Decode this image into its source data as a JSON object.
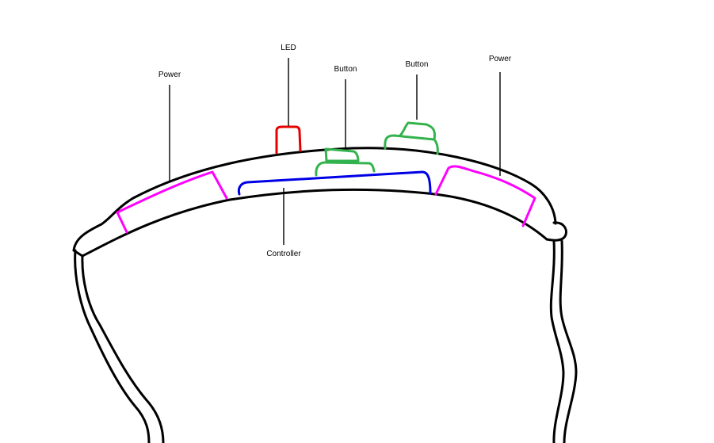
{
  "labels": {
    "led": "LED",
    "button_1": "Button",
    "button_2": "Button",
    "power_left": "Power",
    "power_right": "Power",
    "controller": "Controller"
  },
  "colors": {
    "outline": "#000000",
    "led": "#e60000",
    "button": "#33b34d",
    "power": "#ff00ff",
    "controller": "#0000e6"
  }
}
